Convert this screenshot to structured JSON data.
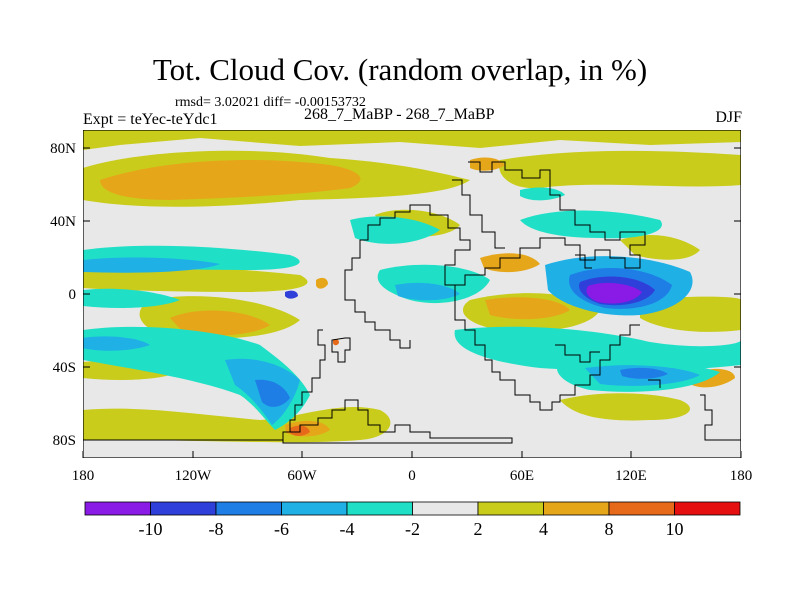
{
  "title": "Tot. Cloud Cov. (random overlap, in %)",
  "stats": "rmsd= 3.02021 diff= -0.00153732",
  "experiment": "Expt = teYec-teYdc1",
  "period": "268_7_MaBP - 268_7_MaBP",
  "season": "DJF",
  "lat_ticks": [
    "80N",
    "40N",
    "0",
    "40S",
    "80S"
  ],
  "lon_ticks": [
    "180",
    "120W",
    "60W",
    "0",
    "60E",
    "120E",
    "180"
  ],
  "colorbar": {
    "colors": [
      "#8a1ae6",
      "#2f3fd9",
      "#1f7de6",
      "#1fb0e6",
      "#1fe0c6",
      "#e8e8e8",
      "#c9cc1a",
      "#e6a61a",
      "#e66a1a",
      "#e60f0f"
    ],
    "labels": [
      "-10",
      "-8",
      "-6",
      "-4",
      "-2",
      "2",
      "4",
      "8",
      "10"
    ]
  }
}
